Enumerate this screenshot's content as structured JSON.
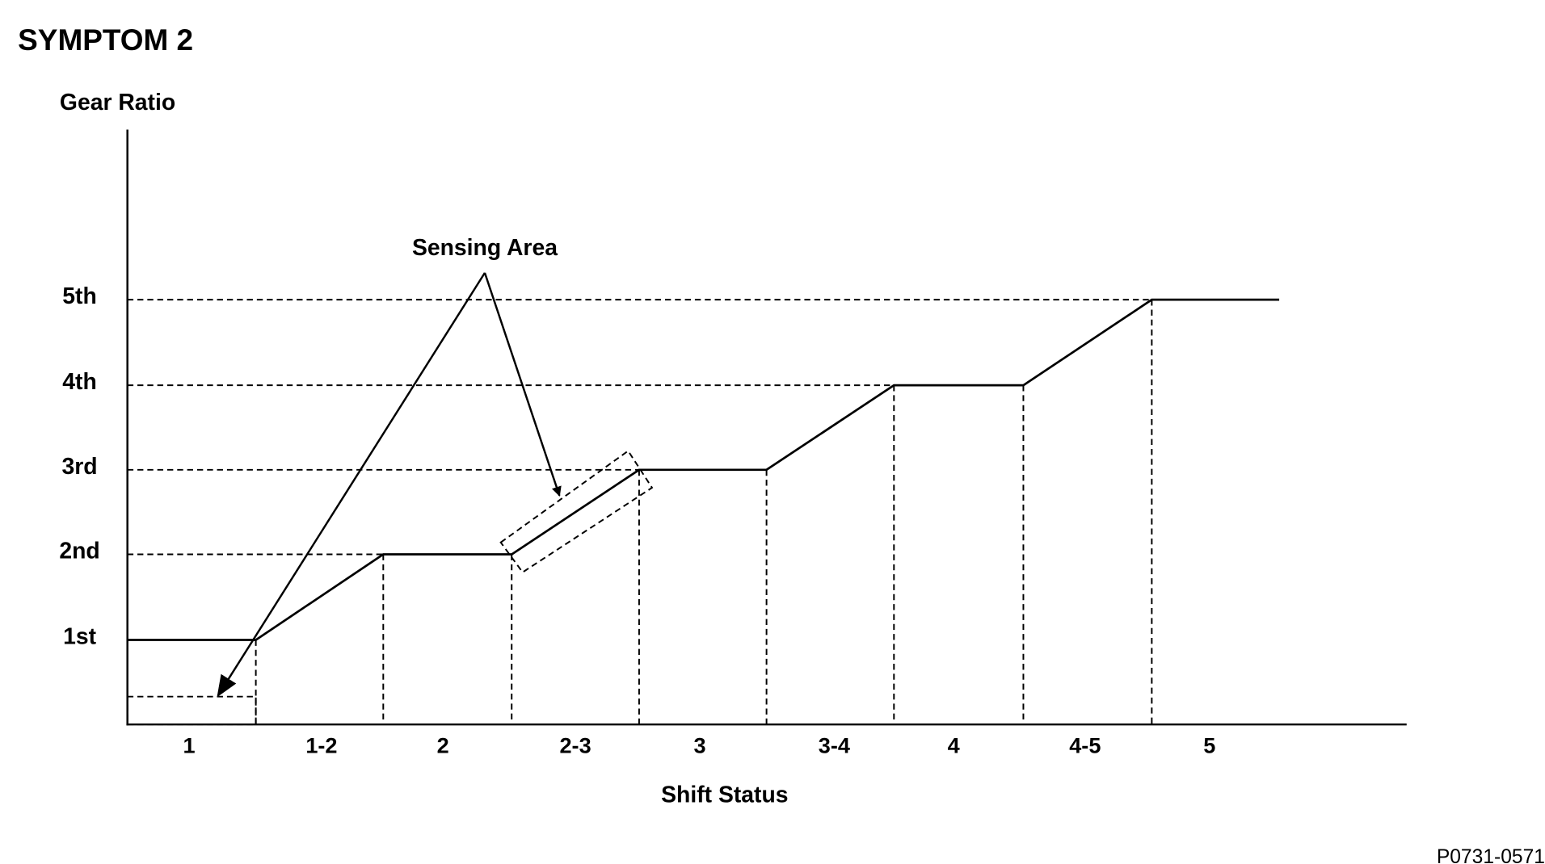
{
  "title": "SYMPTOM 2",
  "y_axis": {
    "label": "Gear Ratio",
    "levels": [
      "1st",
      "2nd",
      "3rd",
      "4th",
      "5th"
    ]
  },
  "x_axis": {
    "label": "Shift Status",
    "categories": [
      "1",
      "1-2",
      "2",
      "2-3",
      "3",
      "3-4",
      "4",
      "4-5",
      "5"
    ]
  },
  "annotation": "Sensing Area",
  "figure_id": "P0731-0571"
}
